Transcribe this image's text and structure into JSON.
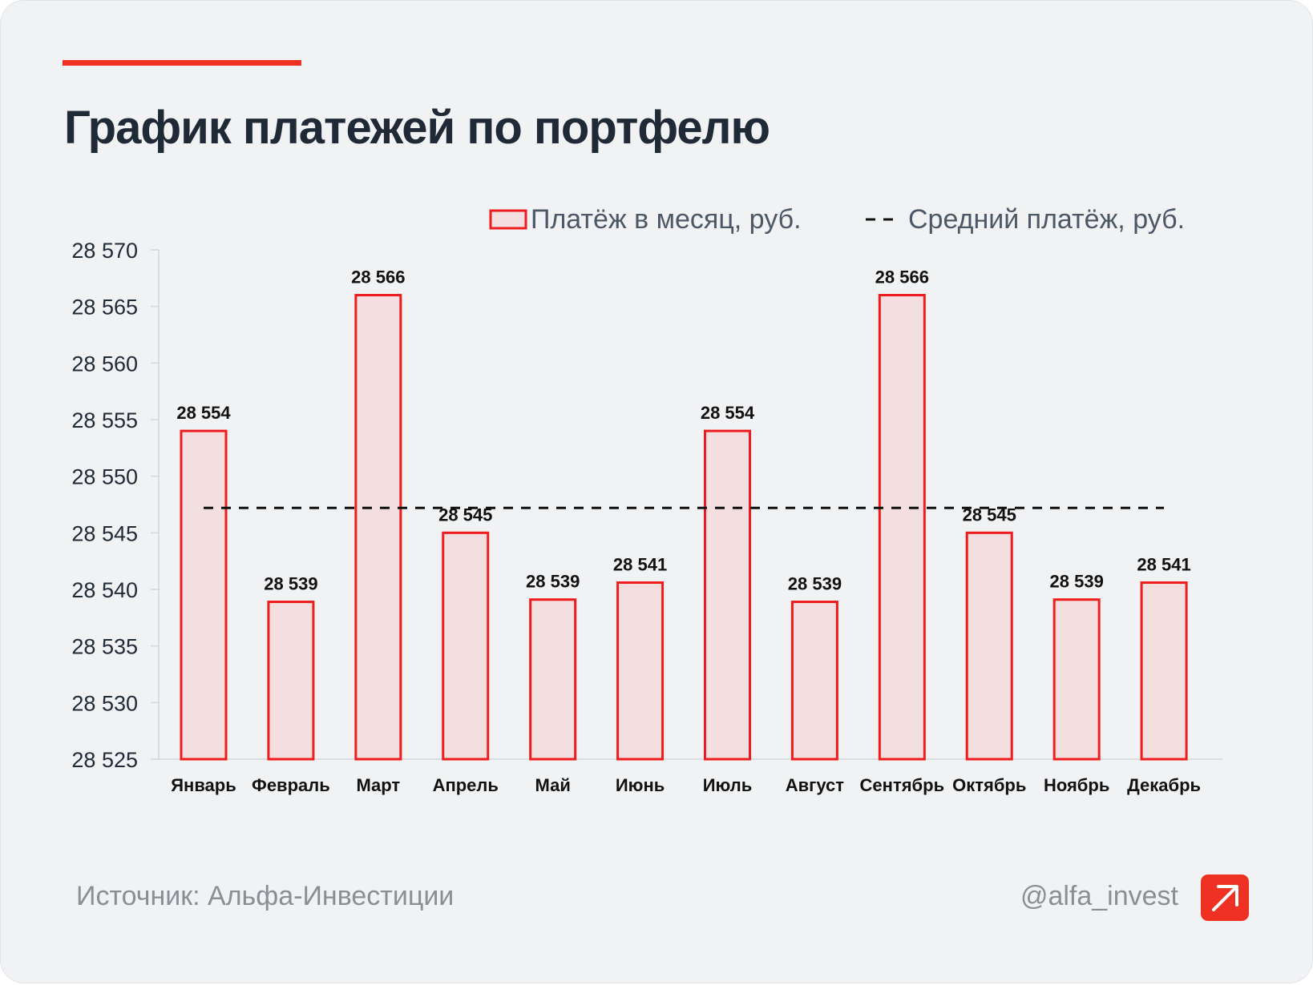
{
  "title": "График платежей по портфелю",
  "footer": {
    "source": "Источник: Альфа-Инвестиции",
    "handle": "@alfa_invest"
  },
  "colors": {
    "accent": "#ef3124",
    "bar_fill": "#f4dfe0",
    "bar_stroke": "#ee1c1c",
    "background": "#f1f2f4",
    "title": "#1f2a36"
  },
  "icons": {
    "logo": "arrow-up-right-icon"
  },
  "chart_data": {
    "type": "bar",
    "categories": [
      "Январь",
      "Февраль",
      "Март",
      "Апрель",
      "Май",
      "Июнь",
      "Июль",
      "Август",
      "Сентябрь",
      "Октябрь",
      "Ноябрь",
      "Декабрь"
    ],
    "series": [
      {
        "name": "Платёж в месяц, руб.",
        "values": [
          28554,
          28538.9,
          28566,
          28545,
          28539.1,
          28540.6,
          28554,
          28538.9,
          28566,
          28545,
          28539.1,
          28540.6
        ],
        "labels": [
          "28 554",
          "28 539",
          "28 566",
          "28 545",
          "28 539",
          "28 541",
          "28 554",
          "28 539",
          "28 566",
          "28 545",
          "28 539",
          "28 541"
        ]
      },
      {
        "name": "Средний платёж, руб.",
        "type": "line",
        "style": "dashed",
        "value": 28547.2
      }
    ],
    "ylim": [
      28525,
      28570
    ],
    "yticks": [
      28525,
      28530,
      28535,
      28540,
      28545,
      28550,
      28555,
      28560,
      28565,
      28570
    ],
    "ytick_labels": [
      "28 525",
      "28 530",
      "28 535",
      "28 540",
      "28 545",
      "28 550",
      "28 555",
      "28 560",
      "28 565",
      "28 570"
    ],
    "legend": {
      "position": "top-right",
      "entries": [
        "Платёж в месяц, руб.",
        "Средний платёж, руб."
      ]
    },
    "grid": false,
    "xlabel": "",
    "ylabel": ""
  }
}
